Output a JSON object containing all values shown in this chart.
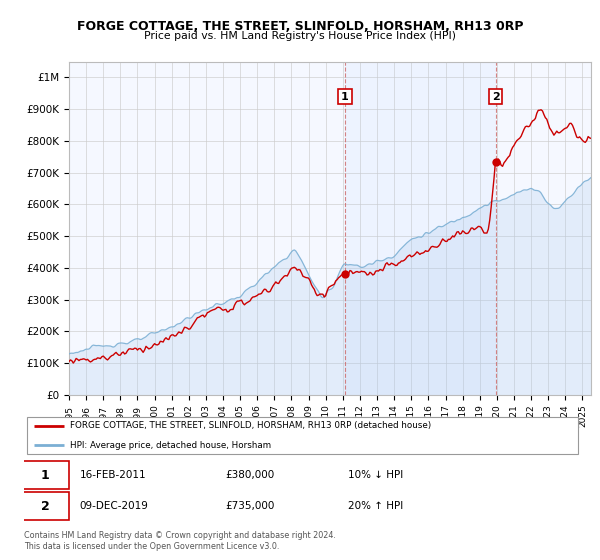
{
  "title": "FORGE COTTAGE, THE STREET, SLINFOLD, HORSHAM, RH13 0RP",
  "subtitle": "Price paid vs. HM Land Registry's House Price Index (HPI)",
  "ylabel_ticks": [
    "£0",
    "£100K",
    "£200K",
    "£300K",
    "£400K",
    "£500K",
    "£600K",
    "£700K",
    "£800K",
    "£900K",
    "£1M"
  ],
  "ytick_vals": [
    0,
    100000,
    200000,
    300000,
    400000,
    500000,
    600000,
    700000,
    800000,
    900000,
    1000000
  ],
  "ylim": [
    0,
    1050000
  ],
  "xlim_start": 1995.0,
  "xlim_end": 2025.5,
  "sale1_x": 2011.12,
  "sale1_y": 380000,
  "sale1_label": "1",
  "sale2_x": 2019.94,
  "sale2_y": 735000,
  "sale2_label": "2",
  "legend_line1": "FORGE COTTAGE, THE STREET, SLINFOLD, HORSHAM, RH13 0RP (detached house)",
  "legend_line2": "HPI: Average price, detached house, Horsham",
  "annotation1_box": "1",
  "annotation1_date": "16-FEB-2011",
  "annotation1_price": "£380,000",
  "annotation1_hpi": "10% ↓ HPI",
  "annotation2_box": "2",
  "annotation2_date": "09-DEC-2019",
  "annotation2_price": "£735,000",
  "annotation2_hpi": "20% ↑ HPI",
  "footer1": "Contains HM Land Registry data © Crown copyright and database right 2024.",
  "footer2": "This data is licensed under the Open Government Licence v3.0.",
  "red_color": "#cc0000",
  "blue_color": "#7bafd4",
  "blue_fill": "#ddeeff",
  "dashed_line_color": "#cc6666",
  "grid_color": "#cccccc",
  "background_color": "#ffffff",
  "plot_bg_color": "#f5f8ff"
}
